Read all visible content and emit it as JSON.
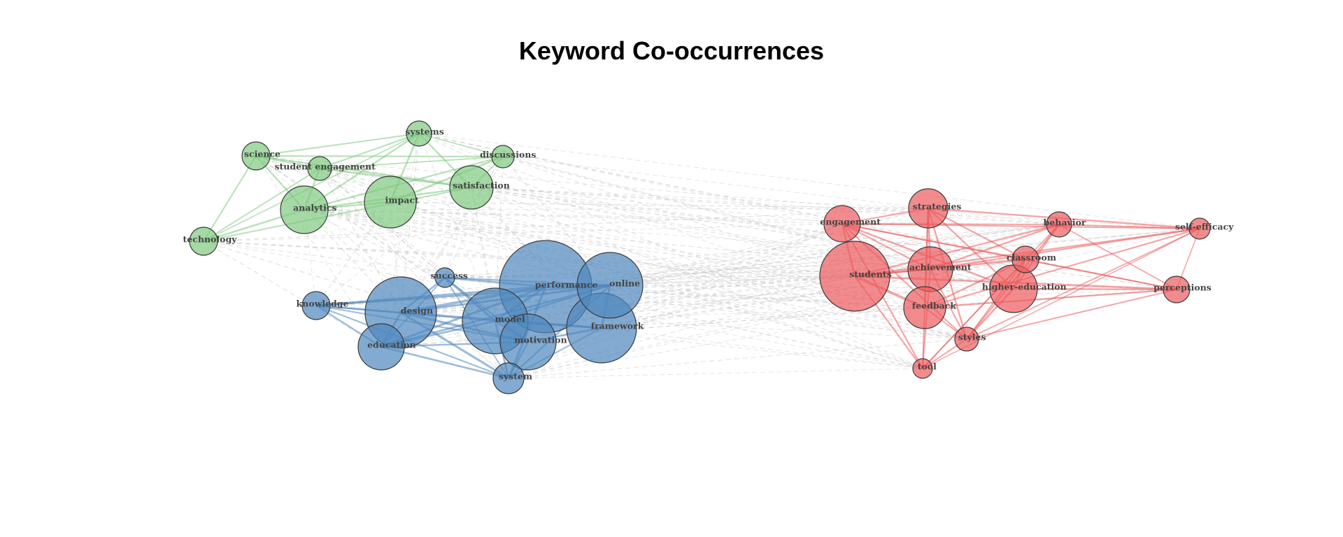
{
  "title": "Keyword Co-occurrences",
  "colors": {
    "green": "#7fc97f",
    "blue": "#4f87be",
    "red": "#ec5a5c",
    "between_edges": "#c8c8c8"
  },
  "nodes": [
    {
      "id": "systems",
      "label": "systems",
      "cluster": "green",
      "size": 18
    },
    {
      "id": "science",
      "label": "science",
      "cluster": "green",
      "size": 20
    },
    {
      "id": "student engagement",
      "label": "student engagement",
      "cluster": "green",
      "size": 17
    },
    {
      "id": "discussions",
      "label": "discussions",
      "cluster": "green",
      "size": 16
    },
    {
      "id": "satisfaction",
      "label": "satisfaction",
      "cluster": "green",
      "size": 31
    },
    {
      "id": "analytics",
      "label": "analytics",
      "cluster": "green",
      "size": 34
    },
    {
      "id": "impact",
      "label": "impact",
      "cluster": "green",
      "size": 37
    },
    {
      "id": "technology",
      "label": "technology",
      "cluster": "green",
      "size": 20
    },
    {
      "id": "success",
      "label": "success",
      "cluster": "blue",
      "size": 14
    },
    {
      "id": "knowledge",
      "label": "knowledge",
      "cluster": "blue",
      "size": 20
    },
    {
      "id": "design",
      "label": "design",
      "cluster": "blue",
      "size": 51
    },
    {
      "id": "education",
      "label": "education",
      "cluster": "blue",
      "size": 33
    },
    {
      "id": "performance",
      "label": "performance",
      "cluster": "blue",
      "size": 66
    },
    {
      "id": "online",
      "label": "online",
      "cluster": "blue",
      "size": 47
    },
    {
      "id": "model",
      "label": "model",
      "cluster": "blue",
      "size": 47
    },
    {
      "id": "motivation",
      "label": "motivation",
      "cluster": "blue",
      "size": 40
    },
    {
      "id": "framework",
      "label": "framework",
      "cluster": "blue",
      "size": 50
    },
    {
      "id": "system",
      "label": "system",
      "cluster": "blue",
      "size": 22
    },
    {
      "id": "engagement",
      "label": "engagement",
      "cluster": "red",
      "size": 26
    },
    {
      "id": "strategies",
      "label": "strategies",
      "cluster": "red",
      "size": 28
    },
    {
      "id": "behavior",
      "label": "behavior",
      "cluster": "red",
      "size": 18
    },
    {
      "id": "self-efficacy",
      "label": "self-efficacy",
      "cluster": "red",
      "size": 15
    },
    {
      "id": "classroom",
      "label": "classroom",
      "cluster": "red",
      "size": 19
    },
    {
      "id": "students",
      "label": "students",
      "cluster": "red",
      "size": 50
    },
    {
      "id": "achievement",
      "label": "achievement",
      "cluster": "red",
      "size": 32
    },
    {
      "id": "higher-education",
      "label": "higher-education",
      "cluster": "red",
      "size": 34
    },
    {
      "id": "perceptions",
      "label": "perceptions",
      "cluster": "red",
      "size": 19
    },
    {
      "id": "feedback",
      "label": "feedback",
      "cluster": "red",
      "size": 30
    },
    {
      "id": "styles",
      "label": "styles",
      "cluster": "red",
      "size": 17
    },
    {
      "id": "tool",
      "label": "tool",
      "cluster": "red",
      "size": 14
    }
  ]
}
